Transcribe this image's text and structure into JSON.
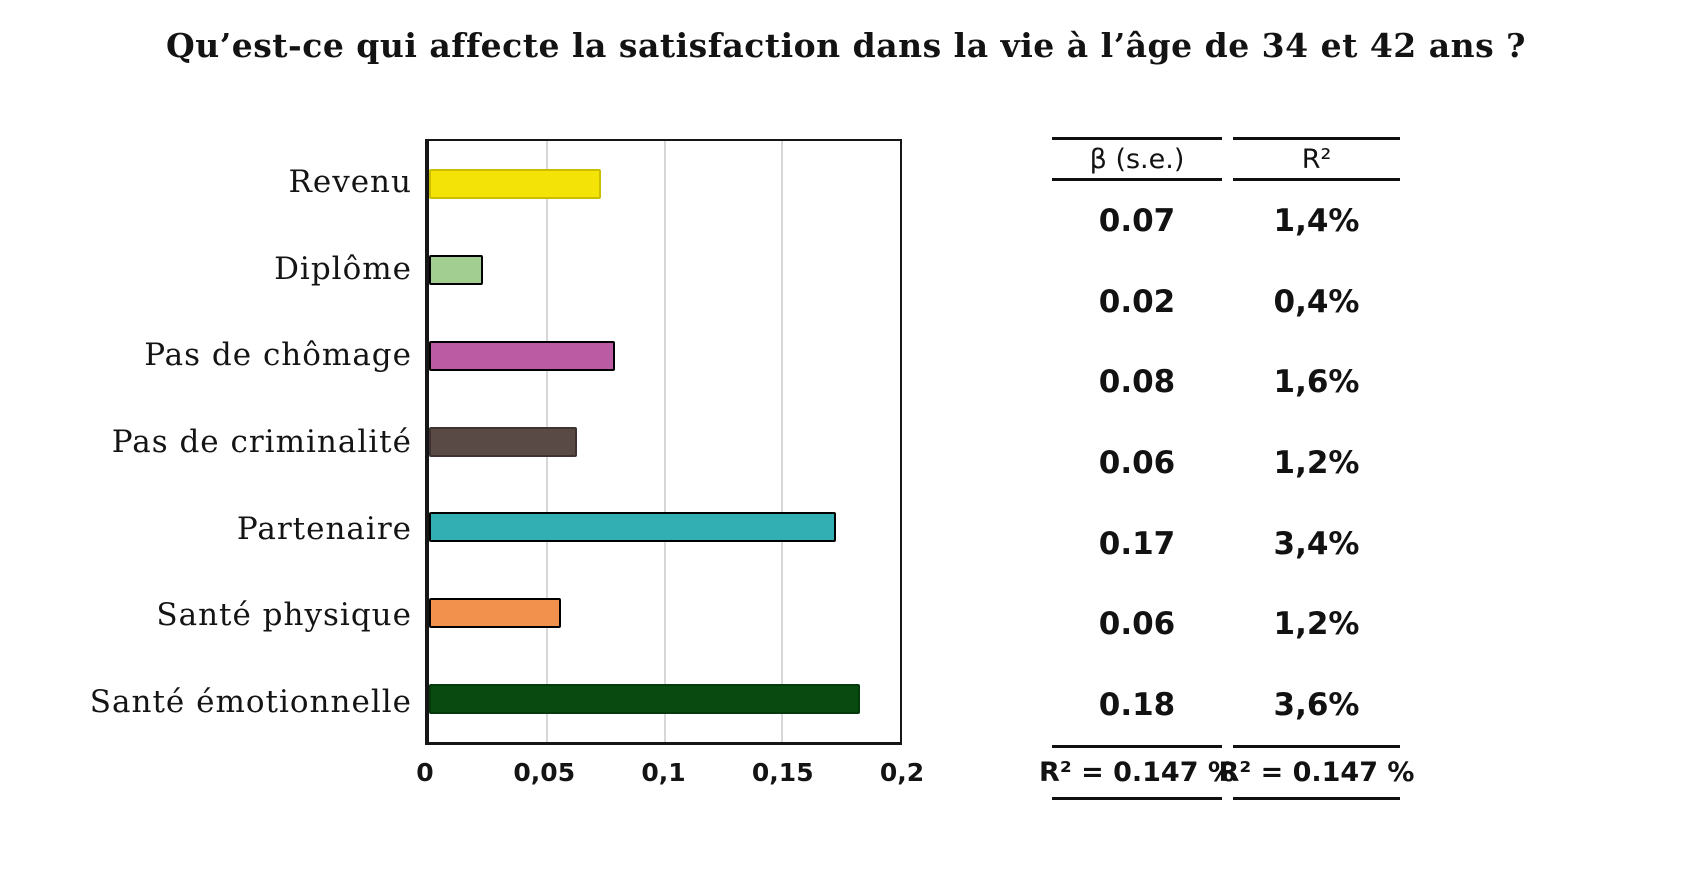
{
  "title": "Qu’est-ce qui affecte la satisfaction dans la vie à l’âge de 34 et 42 ans ?",
  "chart_data": {
    "type": "bar",
    "orientation": "horizontal",
    "title": "Qu’est-ce qui affecte la satisfaction dans la vie à l’âge de 34 et 42 ans ?",
    "categories": [
      "Revenu",
      "Diplôme",
      "Pas de chômage",
      "Pas de criminalité",
      "Partenaire",
      "Santé physique",
      "Santé émotionnelle"
    ],
    "values": [
      0.07,
      0.02,
      0.08,
      0.06,
      0.17,
      0.06,
      0.18
    ],
    "values_visual": [
      0.073,
      0.023,
      0.079,
      0.063,
      0.173,
      0.056,
      0.183
    ],
    "bar_colors": [
      "#F3E307",
      "#A3CE92",
      "#BB5BA4",
      "#594A46",
      "#31AFB3",
      "#F2914E",
      "#094A11"
    ],
    "bar_border_colors": [
      "#CBBE00",
      "#000000",
      "#000000",
      "#3E3330",
      "#000000",
      "#000000",
      "#06380D"
    ],
    "xlabel": "",
    "ylabel": "",
    "xlim": [
      0,
      0.2
    ],
    "x_ticks": [
      "0",
      "0,05",
      "0,1",
      "0,15",
      "0,2"
    ],
    "grid": "vertical-light-gray",
    "legend": "none",
    "plot_border_color": "#161616",
    "gridline_color": "#d7d7d7"
  },
  "table": {
    "col1_header": "β  (s.e.)",
    "col2_header": "R²",
    "rows": [
      {
        "beta": "0.07",
        "r2": "1,4%"
      },
      {
        "beta": "0.02",
        "r2": "0,4%"
      },
      {
        "beta": "0.08",
        "r2": "1,6%"
      },
      {
        "beta": "0.06",
        "r2": "1,2%"
      },
      {
        "beta": "0.17",
        "r2": "3,4%"
      },
      {
        "beta": "0.06",
        "r2": "1,2%"
      },
      {
        "beta": "0.18",
        "r2": "3,6%"
      }
    ],
    "col1_footer": "R² = 0.147 %",
    "col2_footer": "R² = 0.147 %"
  }
}
